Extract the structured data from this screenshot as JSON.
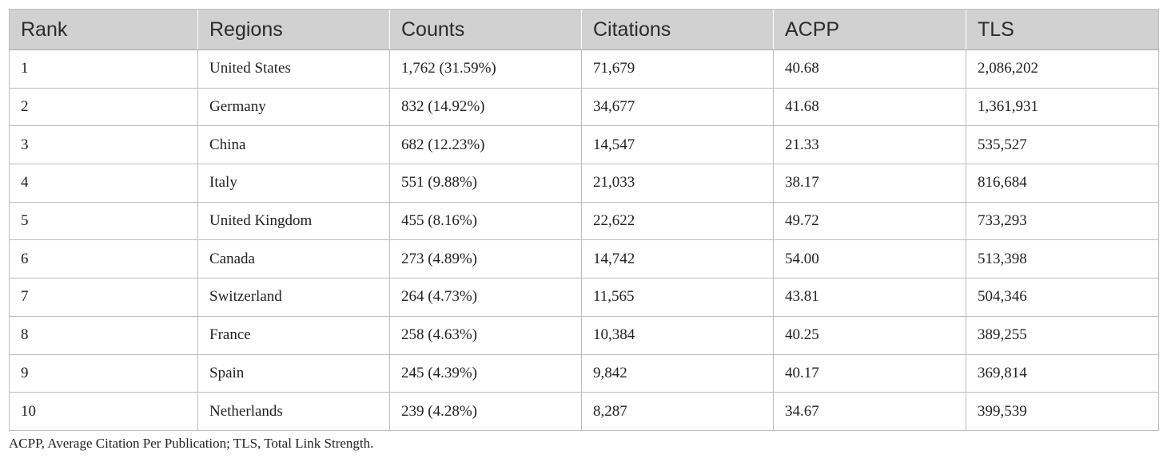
{
  "table": {
    "headers": [
      "Rank",
      "Regions",
      "Counts",
      "Citations",
      "ACPP",
      "TLS"
    ],
    "rows": [
      {
        "rank": "1",
        "region": "United States",
        "counts": "1,762 (31.59%)",
        "citations": "71,679",
        "acpp": "40.68",
        "tls": "2,086,202"
      },
      {
        "rank": "2",
        "region": "Germany",
        "counts": "832 (14.92%)",
        "citations": "34,677",
        "acpp": "41.68",
        "tls": "1,361,931"
      },
      {
        "rank": "3",
        "region": "China",
        "counts": "682 (12.23%)",
        "citations": "14,547",
        "acpp": "21.33",
        "tls": "535,527"
      },
      {
        "rank": "4",
        "region": "Italy",
        "counts": "551 (9.88%)",
        "citations": "21,033",
        "acpp": "38.17",
        "tls": "816,684"
      },
      {
        "rank": "5",
        "region": "United Kingdom",
        "counts": "455 (8.16%)",
        "citations": "22,622",
        "acpp": "49.72",
        "tls": "733,293"
      },
      {
        "rank": "6",
        "region": "Canada",
        "counts": "273 (4.89%)",
        "citations": "14,742",
        "acpp": "54.00",
        "tls": "513,398"
      },
      {
        "rank": "7",
        "region": "Switzerland",
        "counts": "264 (4.73%)",
        "citations": "11,565",
        "acpp": "43.81",
        "tls": "504,346"
      },
      {
        "rank": "8",
        "region": "France",
        "counts": "258 (4.63%)",
        "citations": "10,384",
        "acpp": "40.25",
        "tls": "389,255"
      },
      {
        "rank": "9",
        "region": "Spain",
        "counts": "245 (4.39%)",
        "citations": "9,842",
        "acpp": "40.17",
        "tls": "369,814"
      },
      {
        "rank": "10",
        "region": "Netherlands",
        "counts": "239 (4.28%)",
        "citations": "8,287",
        "acpp": "34.67",
        "tls": "399,539"
      }
    ]
  },
  "footnote": "ACPP, Average Citation Per Publication; TLS, Total Link Strength.",
  "colors": {
    "header_background": "#d1d1d1",
    "border": "#bdbdbd",
    "text": "#222222"
  }
}
